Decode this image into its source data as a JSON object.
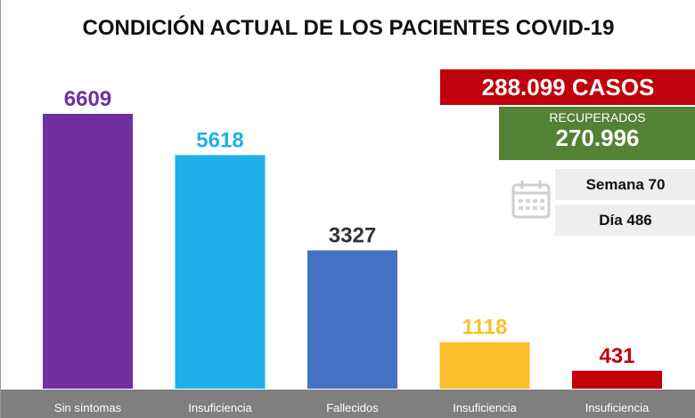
{
  "title": "CONDICIÓN ACTUAL DE LOS PACIENTES COVID-19",
  "summary": {
    "cases": "288.099 CASOS",
    "recovered_label": "RECUPERADOS",
    "recovered_value": "270.996",
    "week": "Semana 70",
    "day": "Día 486",
    "calendar_icon": "calendar-icon"
  },
  "chart_data": {
    "type": "bar",
    "title": "CONDICIÓN ACTUAL DE LOS PACIENTES COVID-19",
    "categories": [
      "Sin síntomas",
      "Insuficiencia",
      "Fallecidos",
      "Insuficiencia",
      "Insuficiencia"
    ],
    "values": [
      6609,
      5618,
      3327,
      1118,
      431
    ],
    "labels": [
      "6609",
      "5618",
      "3327",
      "1118",
      "431"
    ],
    "colors": [
      "#7030a0",
      "#1fb0ea",
      "#4472c4",
      "#fdbf2d",
      "#c0000b"
    ],
    "label_colors": [
      "#7030a0",
      "#1fb0ea",
      "#333333",
      "#fdbf2d",
      "#c0000b"
    ],
    "xlabel": "",
    "ylabel": "",
    "ylim": [
      0,
      6609
    ],
    "grid": false,
    "legend": "none"
  }
}
